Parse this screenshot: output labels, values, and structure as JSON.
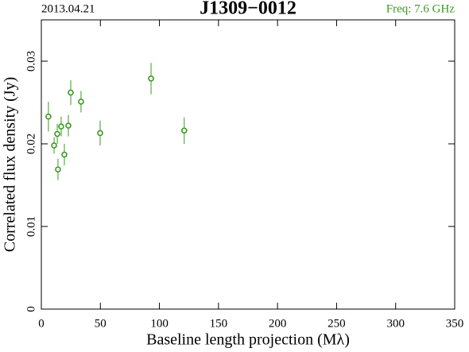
{
  "chart_data": {
    "type": "scatter",
    "date": "2013.04.21",
    "title": "J1309−0012",
    "subtitle": "Freq: 7.6 GHz",
    "x_label": "Baseline length projection (Mλ)",
    "y_label": "Correlated flux density (Jy)",
    "color": "#3a9a1f",
    "x": [
      6,
      10.8,
      13.5,
      14.1,
      16.8,
      19.5,
      22.9,
      24.9,
      33.6,
      49.8,
      92.9,
      121
    ],
    "values": [
      0.0233,
      0.0198,
      0.0212,
      0.0169,
      0.0221,
      0.0187,
      0.0222,
      0.0262,
      0.0251,
      0.0213,
      0.0279,
      0.0216
    ],
    "errors": [
      0.0018,
      0.001,
      0.0012,
      0.0013,
      0.0012,
      0.0013,
      0.0013,
      0.0015,
      0.0013,
      0.0015,
      0.0019,
      0.0016
    ],
    "xlim": [
      0,
      350
    ],
    "xticks": [
      0,
      50,
      100,
      150,
      200,
      250,
      300,
      350
    ],
    "ylim": [
      0,
      0.035
    ],
    "yticks": [
      0,
      0.01,
      0.02,
      0.03
    ]
  }
}
